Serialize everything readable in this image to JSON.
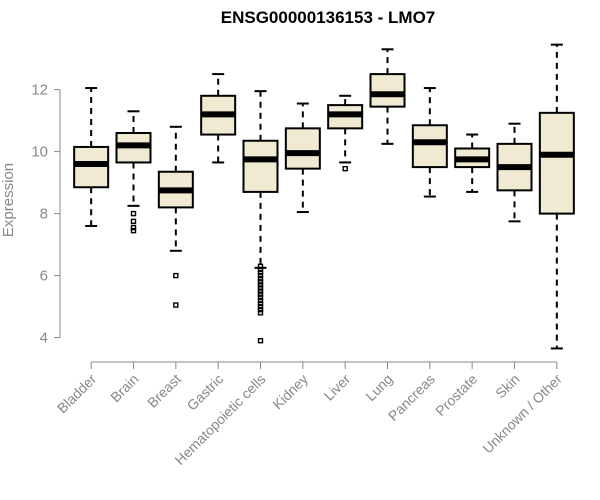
{
  "chart_data": {
    "type": "boxplot",
    "title": "ENSG00000136153 - LMO7",
    "xlabel": "",
    "ylabel": "Expression",
    "ylim": [
      3.6,
      13.6
    ],
    "yticks": [
      4,
      6,
      8,
      10,
      12
    ],
    "categories": [
      "Bladder",
      "Brain",
      "Breast",
      "Gastric",
      "Hematopoietic cells",
      "Kidney",
      "Liver",
      "Lung",
      "Pancreas",
      "Prostate",
      "Skin",
      "Unknown / Other"
    ],
    "boxes": [
      {
        "category": "Bladder",
        "whisker_low": 7.6,
        "q1": 8.85,
        "median": 9.6,
        "q3": 10.15,
        "whisker_high": 12.05,
        "outliers": []
      },
      {
        "category": "Brain",
        "whisker_low": 8.25,
        "q1": 9.65,
        "median": 10.2,
        "q3": 10.6,
        "whisker_high": 11.3,
        "outliers": [
          8.0,
          7.75,
          7.55,
          7.45
        ]
      },
      {
        "category": "Breast",
        "whisker_low": 6.8,
        "q1": 8.2,
        "median": 8.75,
        "q3": 9.35,
        "whisker_high": 10.8,
        "outliers": [
          6.0,
          5.05
        ]
      },
      {
        "category": "Gastric",
        "whisker_low": 9.65,
        "q1": 10.55,
        "median": 11.2,
        "q3": 11.8,
        "whisker_high": 12.5,
        "outliers": []
      },
      {
        "category": "Hematopoietic cells",
        "whisker_low": 6.25,
        "q1": 8.7,
        "median": 9.75,
        "q3": 10.35,
        "whisker_high": 11.95,
        "outliers": [
          6.3,
          6.2,
          6.1,
          6.0,
          5.9,
          5.8,
          5.7,
          5.6,
          5.5,
          5.4,
          5.3,
          5.2,
          5.1,
          5.0,
          4.9,
          4.8,
          3.9
        ]
      },
      {
        "category": "Kidney",
        "whisker_low": 8.05,
        "q1": 9.45,
        "median": 9.95,
        "q3": 10.75,
        "whisker_high": 11.55,
        "outliers": []
      },
      {
        "category": "Liver",
        "whisker_low": 9.65,
        "q1": 10.75,
        "median": 11.2,
        "q3": 11.5,
        "whisker_high": 11.8,
        "outliers": [
          9.45
        ]
      },
      {
        "category": "Lung",
        "whisker_low": 10.25,
        "q1": 11.45,
        "median": 11.85,
        "q3": 12.5,
        "whisker_high": 13.3,
        "outliers": []
      },
      {
        "category": "Pancreas",
        "whisker_low": 8.55,
        "q1": 9.5,
        "median": 10.3,
        "q3": 10.85,
        "whisker_high": 12.05,
        "outliers": []
      },
      {
        "category": "Prostate",
        "whisker_low": 8.7,
        "q1": 9.5,
        "median": 9.75,
        "q3": 10.1,
        "whisker_high": 10.55,
        "outliers": []
      },
      {
        "category": "Skin",
        "whisker_low": 7.75,
        "q1": 8.75,
        "median": 9.5,
        "q3": 10.25,
        "whisker_high": 10.9,
        "outliers": []
      },
      {
        "category": "Unknown / Other",
        "whisker_low": 3.65,
        "q1": 8.0,
        "median": 9.9,
        "q3": 11.25,
        "whisker_high": 13.45,
        "outliers": []
      }
    ],
    "colors": {
      "box_fill": "#f0ead2",
      "stroke": "#000000",
      "axis_text": "#888888"
    },
    "grid": false,
    "legend": "none"
  }
}
